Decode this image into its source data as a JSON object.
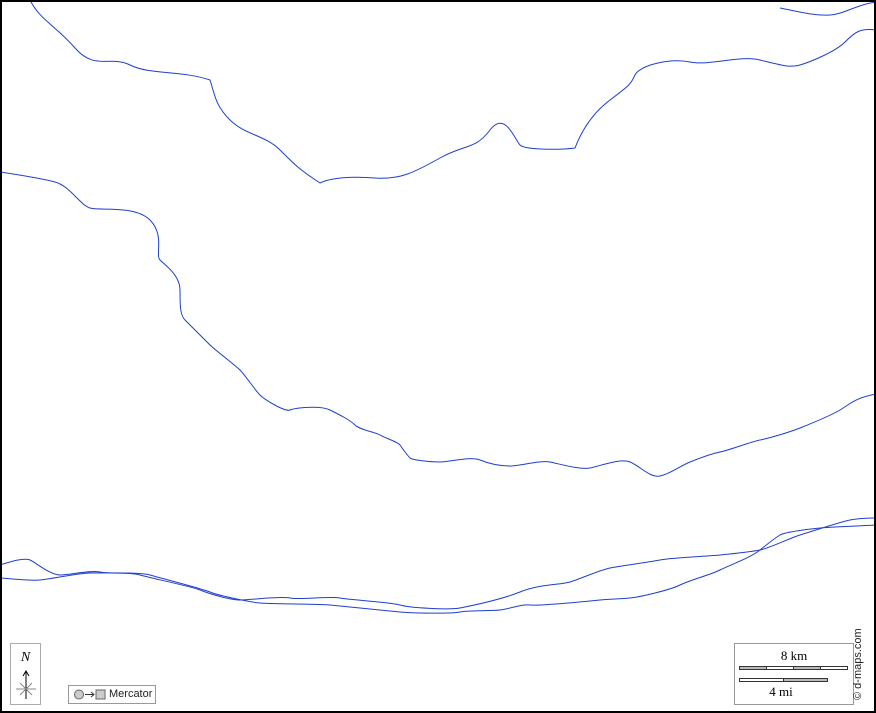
{
  "map": {
    "river_color": "#1f3fcf",
    "compass": {
      "label": "N",
      "icon": "north-arrow-icon"
    },
    "projection": {
      "label": "Mercator",
      "icon": "circle-to-square-icon"
    },
    "scale": {
      "metric_label": "8 km",
      "imperial_label": "4 mi"
    },
    "credit": "© d-maps.com"
  }
}
